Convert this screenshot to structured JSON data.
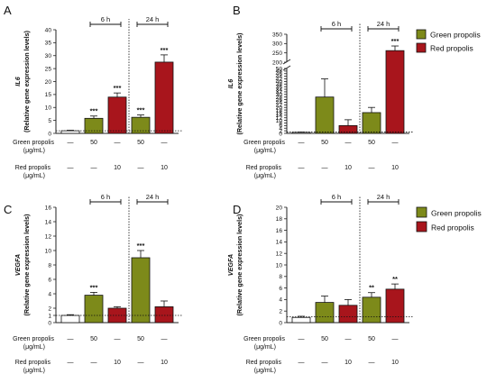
{
  "colors": {
    "green": "#7d8a1a",
    "red": "#a8151c",
    "control": "#ffffff",
    "axis": "#222222"
  },
  "row_labels": {
    "green": "Green propolis",
    "green_unit": "(μg/mL)",
    "red": "Red propolis",
    "red_unit": "(μg/mL)",
    "green_values": [
      "—",
      "50",
      "—",
      "50",
      "—"
    ],
    "red_values": [
      "—",
      "—",
      "10",
      "—",
      "10"
    ]
  },
  "legend_top": {
    "green": "Green propolis",
    "red": "Red propolis"
  },
  "legend_bottom": {
    "green": "Green propolis",
    "red": "Red propolis"
  },
  "timepoints": [
    "6 h",
    "24 h"
  ],
  "chart_data": [
    {
      "panel": "A",
      "type": "bar",
      "ylabel_gene": "IL6",
      "ylabel": "(Relative gene expression levels)",
      "ylim": [
        0,
        40
      ],
      "ticks": [
        "0",
        "5",
        "10",
        "15",
        "20",
        "25",
        "30",
        "35",
        "40"
      ],
      "categories": [
        "Control",
        "Green propolis 6 h",
        "Red propolis 6 h",
        "Green propolis 24 h",
        "Red propolis 24 h"
      ],
      "values": [
        1.0,
        5.8,
        14.0,
        6.2,
        27.5
      ],
      "errors": [
        0.2,
        0.9,
        1.6,
        0.9,
        2.8
      ],
      "significance": [
        "",
        "***",
        "***",
        "***",
        "***"
      ],
      "baseline": 1
    },
    {
      "panel": "B",
      "type": "bar",
      "ylabel_gene": "IL6",
      "ylabel": "(Relative gene expression levels)",
      "broken_axis": true,
      "ticks_lower": [
        "0",
        "2",
        "4",
        "6",
        "8",
        "10",
        "12",
        "14",
        "16",
        "18",
        "20",
        "22",
        "24",
        "26",
        "28",
        "30",
        "32",
        "34",
        "36",
        "38",
        "40",
        "42",
        "44",
        "46",
        "48",
        "50"
      ],
      "ticks_upper": [
        "200",
        "250",
        "300",
        "350"
      ],
      "categories": [
        "Control",
        "Green propolis 6 h",
        "Red propolis 6 h",
        "Green propolis 24 h",
        "Red propolis 24 h"
      ],
      "values": [
        0.8,
        28.0,
        6.0,
        16.0,
        262
      ],
      "errors": [
        0.2,
        14.0,
        4.5,
        4.0,
        25
      ],
      "significance": [
        "",
        "",
        "",
        "",
        "***"
      ],
      "baseline": 1
    },
    {
      "panel": "C",
      "type": "bar",
      "ylabel_gene": "VEGFA",
      "ylabel": "(Relative gene expression levels)",
      "ylim": [
        0,
        16
      ],
      "ticks": [
        "0",
        "1",
        "2",
        "4",
        "6",
        "8",
        "10",
        "12",
        "14",
        "16"
      ],
      "categories": [
        "Control",
        "Green propolis 6 h",
        "Red propolis 6 h",
        "Green propolis 24 h",
        "Red propolis 24 h"
      ],
      "values": [
        1.0,
        3.8,
        2.0,
        9.0,
        2.2
      ],
      "errors": [
        0.1,
        0.4,
        0.2,
        1.0,
        0.8
      ],
      "significance": [
        "",
        "***",
        "",
        "***",
        ""
      ],
      "baseline": 1
    },
    {
      "panel": "D",
      "type": "bar",
      "ylabel_gene": "VEGFA",
      "ylabel": "(Relative gene expression levels)",
      "ylim": [
        0,
        20
      ],
      "ticks": [
        "0",
        "2",
        "4",
        "6",
        "8",
        "10",
        "12",
        "14",
        "16",
        "18",
        "20"
      ],
      "categories": [
        "Control",
        "Green propolis 6 h",
        "Red propolis 6 h",
        "Green propolis 24 h",
        "Red propolis 24 h"
      ],
      "values": [
        0.9,
        3.5,
        3.0,
        4.4,
        5.8
      ],
      "errors": [
        0.2,
        1.1,
        1.0,
        0.8,
        0.9
      ],
      "significance": [
        "",
        "",
        "",
        "**",
        "**"
      ],
      "baseline": 1
    }
  ]
}
